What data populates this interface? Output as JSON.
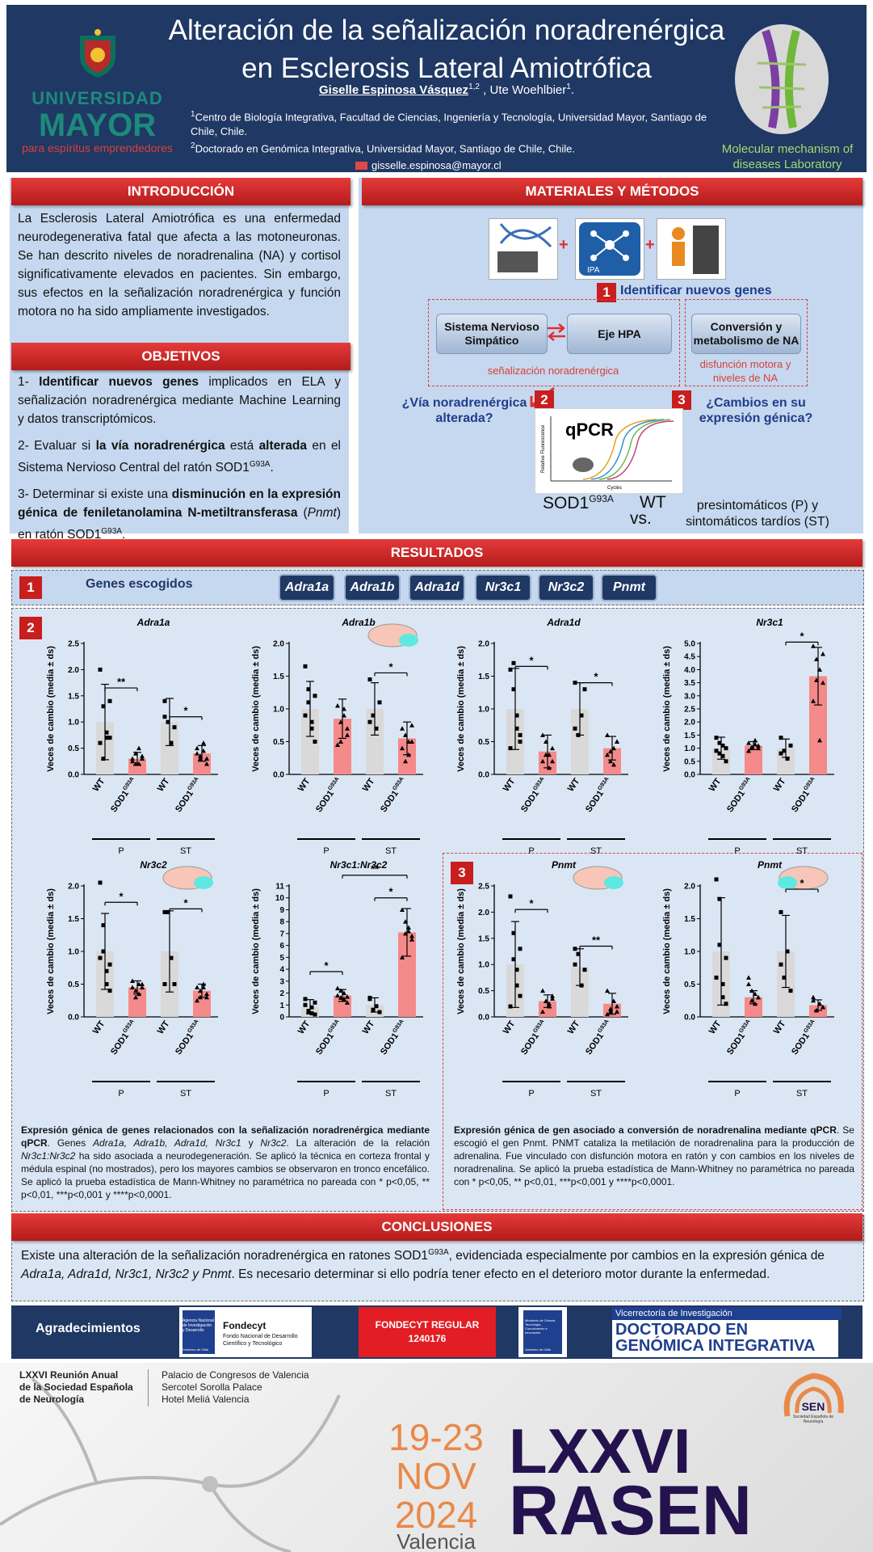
{
  "header": {
    "title_line1": "Alteración de la señalización noradrenérgica",
    "title_line2": "en Esclerosis Lateral Amiotrófica",
    "author1": "Giselle Espinosa Vásquez",
    "author1_sup": "1,2",
    "author_sep": " , ",
    "author2": "Ute Woehlbier",
    "author2_sup": "1",
    "author2_end": ".",
    "aff1_sup": "1",
    "aff1": "Centro de Biología Integrativa, Facultad de Ciencias, Ingeniería y Tecnología, Universidad Mayor, Santiago de Chile, Chile.",
    "aff2_sup": "2",
    "aff2": "Doctorado en Genómica Integrativa, Universidad Mayor, Santiago de Chile, Chile.",
    "email": "gisselle.espinosa@mayor.cl",
    "uni_word": "UNIVERSIDAD",
    "uni_name": "MAYOR",
    "uni_tagline": "para espíritus emprendedores",
    "lab_name": "Molecular mechanism of diseases Laboratory"
  },
  "intro": {
    "heading": "INTRODUCCIÓN",
    "text": "La Esclerosis Lateral Amiotrófica es una enfermedad neurodegenerativa fatal que afecta a las motoneuronas. Se han descrito niveles de noradrenalina (NA) y cortisol significativamente elevados en pacientes. Sin embargo, sus efectos en la señalización noradrenérgica y función motora no ha sido ampliamente investigados."
  },
  "objectives": {
    "heading": "OBJETIVOS",
    "o1_a": "1- ",
    "o1_b": "Identificar nuevos genes",
    "o1_c": " implicados en ELA y señalización noradrenérgica mediante Machine Learning y datos transcriptómicos.",
    "o2_a": "2- Evaluar si ",
    "o2_b": "la vía noradrenérgica",
    "o2_c": " está ",
    "o2_d": "alterada",
    "o2_e": " en el Sistema Nervioso Central del ratón SOD1",
    "o2_sup": "G93A",
    "o2_f": ".",
    "o3_a": "3- Determinar si existe una ",
    "o3_b": "disminución en la expresión génica de feniletanolamina N-metiltransferasa",
    "o3_c": " (",
    "o3_d": "Pnmt",
    "o3_e": ") en ratón SOD1",
    "o3_sup": "G93A",
    "o3_f": "."
  },
  "methods": {
    "heading": "MATERIALES Y MÉTODOS",
    "ipa_label": "IPA",
    "plus": "+",
    "step1": "1",
    "step1_label": "Identificar nuevos genes",
    "box_sns": "Sistema Nervioso Simpático",
    "box_hpa": "Eje HPA",
    "box_na": "Conversión y metabolismo de NA",
    "red_signal": "señalización noradrenérgica",
    "red_dysf": "disfunción motora y niveles de NA",
    "step2": "2",
    "q2": "¿Vía noradrenérgica alterada?",
    "step3": "3",
    "q3": "¿Cambios en su expresión génica?",
    "qpcr": "qPCR",
    "qpcr_ylabel": "Relative Fluorescence",
    "qpcr_xlabel": "Cycles",
    "sod1": "SOD1",
    "sod1_sup": "G93A",
    "vs": "vs.",
    "wt": "WT",
    "stages": "presintomáticos (P) y sintomáticos tardíos (ST)"
  },
  "results": {
    "heading": "RESULTADOS",
    "panel1_num": "1",
    "panel2_num": "2",
    "panel3_num": "3",
    "genes_label": "Genes escogidos",
    "genes": [
      "Adra1a",
      "Adra1b",
      "Adra1d",
      "Nr3c1",
      "Nr3c2",
      "Pnmt"
    ],
    "ylabel": "Veces de cambio (media ± ds)",
    "xticks": [
      "WT",
      "SOD1",
      "WT",
      "SOD1"
    ],
    "xtick_sup": "G93A",
    "group_labels": [
      "P",
      "ST"
    ],
    "caption2_b1": "Expresión génica de genes relacionados con la señalización noradrenérgica mediante qPCR",
    "caption2_t1": ". Genes ",
    "caption2_i1": "Adra1a, Adra1b, Adra1d, Nr3c1",
    "caption2_t2": " y ",
    "caption2_i2": "Nr3c2",
    "caption2_t3": ". La alteración de la relación ",
    "caption2_i3": "Nr3c1:Nr3c2",
    "caption2_t4": " ha sido asociada a neurodegeneración. Se aplicó la técnica en corteza frontal y médula espinal (no mostrados), pero los mayores cambios se observaron en tronco encefálico. Se aplicó la prueba estadística de Mann-Whitney no paramétrica no pareada con * p<0,05, ** p<0,01, ***p<0,001 y ****p<0,0001.",
    "caption3_b1": "Expresión génica de gen asociado a conversión de noradrenalina mediante qPCR",
    "caption3_t1": ". Se escogió el gen Pnmt. PNMT cataliza la metilación de noradrenalina para la producción de adrenalina. Fue vinculado con disfunción motora en ratón y con cambios en los niveles de noradrenalina. Se aplicó la prueba estadística de Mann-Whitney no paramétrica no pareada con * p<0,05, ** p<0,01, ***p<0,001 y ****p<0,0001."
  },
  "chart_data": [
    {
      "type": "bar",
      "title": "Adra1a",
      "ylabel": "Veces de cambio (media ± ds)",
      "categories": [
        "WT",
        "SOD1G93A",
        "WT",
        "SOD1G93A"
      ],
      "groups": [
        "P",
        "ST"
      ],
      "values": [
        1.0,
        0.3,
        1.0,
        0.4
      ],
      "sd": [
        0.72,
        0.12,
        0.45,
        0.15
      ],
      "ylim": [
        0,
        2.5
      ],
      "yticks": [
        "0.0",
        "0.5",
        "1.0",
        "1.5",
        "2.0",
        "2.5"
      ],
      "points": [
        [
          2.0,
          1.3,
          0.8,
          0.7,
          0.6,
          0.3,
          0.7,
          1.4
        ],
        [
          0.3,
          0.2,
          0.5,
          0.35,
          0.25,
          0.4,
          0.2,
          0.3
        ],
        [
          1.4,
          1.0,
          0.6,
          0.9,
          1.1
        ],
        [
          0.5,
          0.3,
          0.6,
          0.2,
          0.4,
          0.35,
          0.45,
          0.3
        ]
      ],
      "sig": [
        {
          "a": 0,
          "b": 1,
          "label": "**",
          "y": 1.65
        },
        {
          "a": 2,
          "b": 3,
          "label": "*",
          "y": 1.1
        }
      ],
      "brain": "none"
    },
    {
      "type": "bar",
      "title": "Adra1b",
      "ylabel": "Veces de cambio (media ± ds)",
      "categories": [
        "WT",
        "SOD1G93A",
        "WT",
        "SOD1G93A"
      ],
      "groups": [
        "P",
        "ST"
      ],
      "values": [
        1.0,
        0.85,
        1.0,
        0.55
      ],
      "sd": [
        0.42,
        0.3,
        0.4,
        0.25
      ],
      "ylim": [
        0,
        2.0
      ],
      "yticks": [
        "0.0",
        "0.5",
        "1.0",
        "1.5",
        "2.0"
      ],
      "points": [
        [
          1.65,
          1.3,
          0.8,
          0.5,
          0.9,
          1.1,
          0.7,
          1.2
        ],
        [
          1.05,
          0.5,
          0.9,
          0.7,
          0.45,
          0.8,
          1.0,
          0.6
        ],
        [
          1.45,
          0.9,
          0.7,
          1.1,
          0.8
        ],
        [
          0.7,
          0.2,
          0.5,
          0.75,
          0.4,
          0.6,
          0.3,
          0.5
        ]
      ],
      "sig": [
        {
          "a": 2,
          "b": 3,
          "label": "*",
          "y": 1.55
        }
      ],
      "brain": "right"
    },
    {
      "type": "bar",
      "title": "Adra1d",
      "ylabel": "Veces de cambio (media ± ds)",
      "categories": [
        "WT",
        "SOD1G93A",
        "WT",
        "SOD1G93A"
      ],
      "groups": [
        "P",
        "ST"
      ],
      "values": [
        1.0,
        0.35,
        1.0,
        0.4
      ],
      "sd": [
        0.62,
        0.25,
        0.4,
        0.18
      ],
      "ylim": [
        0,
        2.0
      ],
      "yticks": [
        "0.0",
        "0.5",
        "1.0",
        "1.5",
        "2.0"
      ],
      "points": [
        [
          1.6,
          1.7,
          0.7,
          0.5,
          0.4,
          1.3,
          0.9,
          0.6
        ],
        [
          0.6,
          0.3,
          0.1,
          0.4,
          0.2,
          0.5,
          0.3,
          0.2
        ],
        [
          1.4,
          0.6,
          0.9,
          1.3,
          0.7
        ],
        [
          0.6,
          0.2,
          0.4,
          0.5,
          0.3,
          0.35,
          0.15,
          0.5
        ]
      ],
      "sig": [
        {
          "a": 0,
          "b": 1,
          "label": "*",
          "y": 1.65
        },
        {
          "a": 2,
          "b": 3,
          "label": "*",
          "y": 1.4
        }
      ],
      "brain": "none"
    },
    {
      "type": "bar",
      "title": "Nr3c1",
      "ylabel": "Veces de cambio (media ± ds)",
      "categories": [
        "WT",
        "SOD1G93A",
        "WT",
        "SOD1G93A"
      ],
      "groups": [
        "P",
        "ST"
      ],
      "values": [
        1.0,
        1.1,
        1.0,
        3.75
      ],
      "sd": [
        0.42,
        0.15,
        0.35,
        1.1
      ],
      "ylim": [
        0,
        5.0
      ],
      "yticks": [
        "0.0",
        "0.5",
        "1.0",
        "1.5",
        "2.0",
        "2.5",
        "3.0",
        "3.5",
        "4.0",
        "4.5",
        "5.0"
      ],
      "points": [
        [
          1.4,
          0.8,
          1.1,
          0.5,
          0.9,
          1.2,
          0.7,
          1.0
        ],
        [
          1.2,
          1.0,
          1.3,
          1.1,
          0.9,
          1.05,
          1.15,
          1.0
        ],
        [
          1.4,
          0.9,
          0.6,
          1.1,
          0.8
        ],
        [
          4.9,
          4.4,
          4.0,
          3.5,
          2.8,
          3.6,
          1.3,
          4.6
        ]
      ],
      "sig": [
        {
          "a": 2,
          "b": 3,
          "label": "*",
          "y": 5.05
        }
      ],
      "brain": "none"
    },
    {
      "type": "bar",
      "title": "Nr3c2",
      "ylabel": "Veces de cambio (media ± ds)",
      "categories": [
        "WT",
        "SOD1G93A",
        "WT",
        "SOD1G93A"
      ],
      "groups": [
        "P",
        "ST"
      ],
      "values": [
        1.0,
        0.45,
        1.0,
        0.4
      ],
      "sd": [
        0.58,
        0.1,
        0.62,
        0.1
      ],
      "ylim": [
        0,
        2.0
      ],
      "yticks": [
        "0.0",
        "0.5",
        "1.0",
        "1.5",
        "2.0"
      ],
      "points": [
        [
          2.05,
          1.4,
          0.7,
          0.4,
          0.9,
          1.0,
          0.5,
          0.8
        ],
        [
          0.55,
          0.4,
          0.35,
          0.5,
          0.45,
          0.3,
          0.5,
          0.45
        ],
        [
          1.6,
          1.6,
          0.9,
          0.5,
          0.5
        ],
        [
          0.45,
          0.3,
          0.5,
          0.35,
          0.25,
          0.4,
          0.45,
          0.3
        ]
      ],
      "sig": [
        {
          "a": 0,
          "b": 1,
          "label": "*",
          "y": 1.75
        },
        {
          "a": 2,
          "b": 3,
          "label": "*",
          "y": 1.65
        }
      ],
      "brain": "right"
    },
    {
      "type": "bar",
      "title": "Nr3c1:Nr3c2",
      "ylabel": "Veces de cambio (media ± ds)",
      "categories": [
        "WT",
        "SOD1G93A",
        "WT",
        "SOD1G93A"
      ],
      "groups": [
        "P",
        "ST"
      ],
      "values": [
        0.85,
        1.8,
        1.0,
        7.1
      ],
      "sd": [
        0.6,
        0.5,
        0.6,
        2.0
      ],
      "ylim": [
        0,
        11
      ],
      "yticks": [
        "0",
        "1",
        "2",
        "3",
        "4",
        "5",
        "6",
        "7",
        "8",
        "9",
        "10",
        "11"
      ],
      "points": [
        [
          1.5,
          0.4,
          0.8,
          0.2,
          1.0,
          0.5,
          0.3,
          1.2
        ],
        [
          2.4,
          1.6,
          2.0,
          1.2,
          1.8,
          2.2,
          1.5,
          1.7
        ],
        [
          1.5,
          0.6,
          0.9,
          0.4,
          1.6
        ],
        [
          9.0,
          8.0,
          7.5,
          6.5,
          5.0,
          7.0,
          7.2,
          6.8
        ]
      ],
      "sig": [
        {
          "a": 0,
          "b": 1,
          "label": "*",
          "y": 3.8
        },
        {
          "a": 2,
          "b": 3,
          "label": "*",
          "y": 10.0
        },
        {
          "a": 1,
          "b": 3,
          "label": "**",
          "y": 11.9
        }
      ],
      "brain": "none"
    },
    {
      "type": "bar",
      "title": "Pnmt",
      "ylabel": "Veces de cambio (media ± ds)",
      "categories": [
        "WT",
        "SOD1G93A",
        "WT",
        "SOD1G93A"
      ],
      "groups": [
        "P",
        "ST"
      ],
      "values": [
        1.0,
        0.3,
        0.95,
        0.25
      ],
      "sd": [
        0.82,
        0.12,
        0.35,
        0.2
      ],
      "ylim": [
        0,
        2.5
      ],
      "yticks": [
        "0.0",
        "0.5",
        "1.0",
        "1.5",
        "2.0",
        "2.5"
      ],
      "points": [
        [
          2.3,
          1.6,
          0.9,
          0.4,
          0.2,
          1.1,
          0.6,
          1.3
        ],
        [
          0.5,
          0.3,
          0.2,
          0.4,
          0.1,
          0.3,
          0.25,
          0.35
        ],
        [
          1.3,
          1.2,
          0.6,
          0.9,
          1.0
        ],
        [
          0.5,
          0.1,
          0.3,
          0.2,
          0.05,
          0.15,
          0.3,
          0.1
        ]
      ],
      "sig": [
        {
          "a": 0,
          "b": 1,
          "label": "*",
          "y": 2.05
        },
        {
          "a": 2,
          "b": 3,
          "label": "**",
          "y": 1.35
        }
      ],
      "brain": "right"
    },
    {
      "type": "bar",
      "title": "Pnmt",
      "ylabel": "Veces de cambio (media ± ds)",
      "categories": [
        "WT",
        "SOD1G93A",
        "WT",
        "SOD1G93A"
      ],
      "groups": [
        "P",
        "ST"
      ],
      "values": [
        1.0,
        0.3,
        1.0,
        0.18
      ],
      "sd": [
        0.82,
        0.1,
        0.55,
        0.08
      ],
      "ylim": [
        0,
        2.0
      ],
      "yticks": [
        "0.0",
        "0.5",
        "1.0",
        "1.5",
        "2.0"
      ],
      "points": [
        [
          2.3,
          1.8,
          0.5,
          0.2,
          0.6,
          1.1,
          0.3,
          0.9
        ],
        [
          0.6,
          0.4,
          0.2,
          0.3,
          0.5,
          0.25,
          0.35,
          0.3
        ],
        [
          1.6,
          0.6,
          1.0,
          0.4,
          0.8
        ],
        [
          0.3,
          0.1,
          0.2,
          0.15,
          0.25,
          0.1,
          0.2,
          0.15
        ]
      ],
      "sig": [
        {
          "a": 2,
          "b": 3,
          "label": "*",
          "y": 1.95
        }
      ],
      "brain": "left"
    }
  ],
  "conclusions": {
    "heading": "CONCLUSIONES",
    "t1": "Existe una alteración de la señalización noradrenérgica en ratones SOD1",
    "t1_sup": "G93A",
    "t2": ", evidenciada especialmente por cambios en la expresión génica de ",
    "t2_i": "Adra1a, Adra1d, Nr3c1, Nr3c2 y Pnmt",
    "t3": ". Es necesario determinar si ello podría tener efecto en el deterioro motor durante la enfermedad."
  },
  "acknowledgments": {
    "label": "Agradecimientos",
    "anid_name": "Agencia Nacional de Investigación y Desarrollo",
    "gobierno": "Gobierno de Chile",
    "fondecyt_title": "Fondecyt",
    "fondecyt_sub": "Fondo Nacional de Desarrollo Científico y Tecnológico",
    "fondecyt_regular": "FONDECYT REGULAR",
    "fondecyt_num": "1240176",
    "ministerio": "Ministerio de Ciencia, Tecnología, Conocimiento e Innovación",
    "vicerrectoria": "Vicerrectoría de Investigación",
    "doctorado_line1": "DOCTORADO EN",
    "doctorado_line2": "GENÓMICA INTEGRATIVA"
  },
  "footer": {
    "meeting_line1": "LXXVI Reunión Anual",
    "meeting_line2": "de la Sociedad Española",
    "meeting_line3": "de Neurología",
    "venue1": "Palacio de Congresos de Valencia",
    "venue2": "Sercotel Sorolla Palace",
    "venue3": "Hotel Meliá Valencia",
    "date_line1": "19-23",
    "date_line2": "NOV",
    "date_line3": "2024",
    "city": "Valencia",
    "rasen_num": "LXXVI",
    "rasen": "RASEN",
    "sen": "SEN",
    "sen_sub": "Sociedad Española de Neurología"
  },
  "colors": {
    "navy": "#1f3864",
    "red_bar": "#c81e1e",
    "panel_bg": "#c5d8ef",
    "bar_wt": "#d9d9d9",
    "bar_sod": "#f48a8a"
  }
}
